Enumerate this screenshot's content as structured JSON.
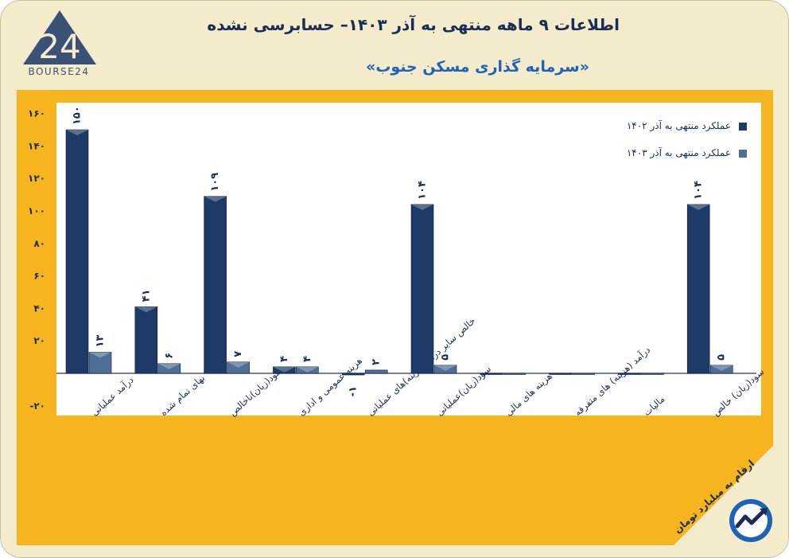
{
  "header": {
    "title": "اطلاعات ۹ ماهه منتهی به آذر ۱۴۰۳– حسابرسی نشده",
    "subtitle": "«سرمایه گذاری مسکن جنوب»",
    "logo_text": "BOURSE24"
  },
  "footer": {
    "unit_note": "ارقام به میلیارد تومان"
  },
  "colors": {
    "series1": "#1d3b66",
    "series2": "#4f6f97",
    "plot_background": "#f6b51f",
    "page_background": "#f4ebcd",
    "title": "#1a2d55",
    "subtitle": "#1e63b5"
  },
  "chart_data": {
    "type": "bar",
    "title": "اطلاعات ۹ ماهه منتهی به آذر ۱۴۰۳– حسابرسی نشده",
    "xlabel": "",
    "ylabel": "",
    "ylim": [
      -20,
      160
    ],
    "yticks": [
      -20,
      20,
      40,
      60,
      80,
      100,
      120,
      140,
      160
    ],
    "ytick_labels": [
      "-۲۰",
      "۲۰",
      "۴۰",
      "۶۰",
      "۸۰",
      "۱۰۰",
      "۱۲۰",
      "۱۴۰",
      "۱۶۰"
    ],
    "grid": false,
    "legend_position": "top-right",
    "categories": [
      "درآمد عملیاتی",
      "بهای تمام شده",
      "سود(زیان)ناخالص",
      "هزینه عمومی و اداری",
      "خالص سایر درآمد(هزینه)های عملیاتی",
      "سود(زیان)عملیاتی",
      "هزینه های مالی",
      "درآمد (هزینه) های متفرقه",
      "مالیات",
      "سود(زیان) خالص"
    ],
    "series": [
      {
        "name": "عملکرد منتهی به آذر ۱۴۰۲",
        "values": [
          150,
          41,
          109,
          4,
          -1,
          104,
          0,
          0,
          0,
          104
        ],
        "labels": [
          "۱۵۰",
          "۴۱",
          "۱۰۹",
          "۴",
          "-۱",
          "۱۰۴",
          "",
          "",
          "",
          "۱۰۴"
        ]
      },
      {
        "name": "عملکرد منتهی به آذر ۱۴۰۳",
        "values": [
          13,
          6,
          7,
          4,
          2,
          5,
          0,
          0,
          0,
          5
        ],
        "labels": [
          "۱۳",
          "۶",
          "۷",
          "۴",
          "۲",
          "۵",
          "",
          "",
          "",
          "۵"
        ]
      }
    ]
  }
}
